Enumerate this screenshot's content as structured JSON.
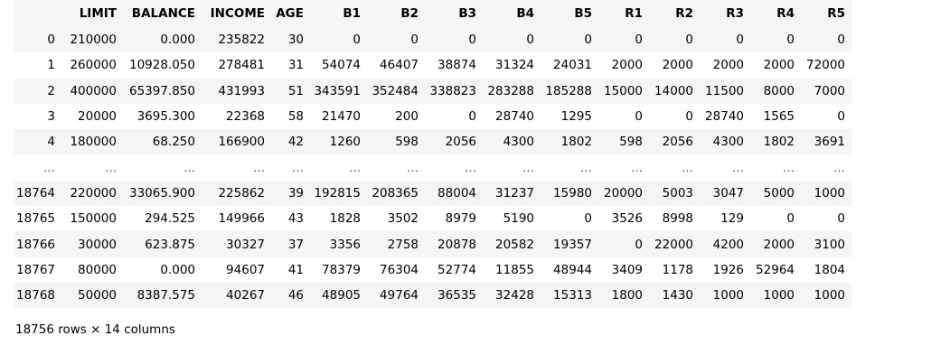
{
  "columns": [
    "",
    "LIMIT",
    "BALANCE",
    "INCOME",
    "AGE",
    "B1",
    "B2",
    "B3",
    "B4",
    "B5",
    "R1",
    "R2",
    "R3",
    "R4",
    "R5"
  ],
  "rows": [
    [
      "0",
      "210000",
      "0.000",
      "235822",
      "30",
      "0",
      "0",
      "0",
      "0",
      "0",
      "0",
      "0",
      "0",
      "0",
      "0"
    ],
    [
      "1",
      "260000",
      "10928.050",
      "278481",
      "31",
      "54074",
      "46407",
      "38874",
      "31324",
      "24031",
      "2000",
      "2000",
      "2000",
      "2000",
      "72000"
    ],
    [
      "2",
      "400000",
      "65397.850",
      "431993",
      "51",
      "343591",
      "352484",
      "338823",
      "283288",
      "185288",
      "15000",
      "14000",
      "11500",
      "8000",
      "7000"
    ],
    [
      "3",
      "20000",
      "3695.300",
      "22368",
      "58",
      "21470",
      "200",
      "0",
      "28740",
      "1295",
      "0",
      "0",
      "28740",
      "1565",
      "0"
    ],
    [
      "4",
      "180000",
      "68.250",
      "166900",
      "42",
      "1260",
      "598",
      "2056",
      "4300",
      "1802",
      "598",
      "2056",
      "4300",
      "1802",
      "3691"
    ],
    [
      "...",
      "...",
      "...",
      "...",
      "...",
      "...",
      "...",
      "...",
      "...",
      "...",
      "...",
      "...",
      "...",
      "...",
      "..."
    ],
    [
      "18764",
      "220000",
      "33065.900",
      "225862",
      "39",
      "192815",
      "208365",
      "88004",
      "31237",
      "15980",
      "20000",
      "5003",
      "3047",
      "5000",
      "1000"
    ],
    [
      "18765",
      "150000",
      "294.525",
      "149966",
      "43",
      "1828",
      "3502",
      "8979",
      "5190",
      "0",
      "3526",
      "8998",
      "129",
      "0",
      "0"
    ],
    [
      "18766",
      "30000",
      "623.875",
      "30327",
      "37",
      "3356",
      "2758",
      "20878",
      "20582",
      "19357",
      "0",
      "22000",
      "4200",
      "2000",
      "3100"
    ],
    [
      "18767",
      "80000",
      "0.000",
      "94607",
      "41",
      "78379",
      "76304",
      "52774",
      "11855",
      "48944",
      "3409",
      "1178",
      "1926",
      "52964",
      "1804"
    ],
    [
      "18768",
      "50000",
      "8387.575",
      "40267",
      "46",
      "48905",
      "49764",
      "36535",
      "32428",
      "15313",
      "1800",
      "1430",
      "1000",
      "1000",
      "1000"
    ]
  ],
  "footer": {
    "shape_text": "18756 rows × 14 columns"
  }
}
